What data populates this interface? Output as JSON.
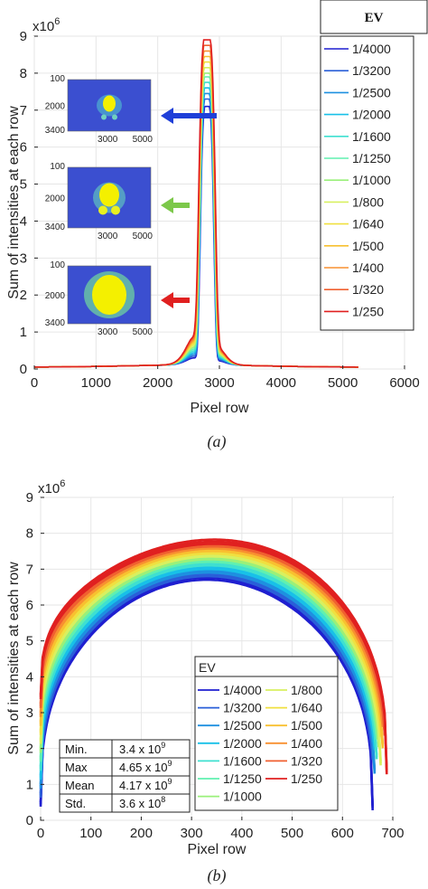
{
  "chart_data": [
    {
      "type": "line",
      "caption": "(a)",
      "xlabel": "Pixel row",
      "ylabel": "Sum of intensities at each row",
      "y_exponent": "x10^6",
      "xlim": [
        0,
        6000
      ],
      "ylim": [
        0,
        9
      ],
      "xticks": [
        "0",
        "1000",
        "2000",
        "3000",
        "4000",
        "5000",
        "6000"
      ],
      "yticks": [
        "0",
        "1",
        "2",
        "3",
        "4",
        "5",
        "6",
        "7",
        "8",
        "9"
      ],
      "grid": true,
      "legend": {
        "title": "EV",
        "placement": "right-outside"
      },
      "series": [
        {
          "name": "1/4000",
          "color": "#1f1fd0",
          "peak": 7.1
        },
        {
          "name": "1/3200",
          "color": "#2a5fd8",
          "peak": 7.3
        },
        {
          "name": "1/2500",
          "color": "#1e90e0",
          "peak": 7.45
        },
        {
          "name": "1/2000",
          "color": "#18c0e8",
          "peak": 7.6
        },
        {
          "name": "1/1600",
          "color": "#3fe0d0",
          "peak": 7.75
        },
        {
          "name": "1/1250",
          "color": "#60f0b0",
          "peak": 7.9
        },
        {
          "name": "1/1000",
          "color": "#9af07a",
          "peak": 8.0
        },
        {
          "name": "1/800",
          "color": "#d8f060",
          "peak": 8.15
        },
        {
          "name": "1/640",
          "color": "#f0e040",
          "peak": 8.3
        },
        {
          "name": "1/500",
          "color": "#f8c030",
          "peak": 8.45
        },
        {
          "name": "1/400",
          "color": "#f89030",
          "peak": 8.6
        },
        {
          "name": "1/320",
          "color": "#f06030",
          "peak": 8.75
        },
        {
          "name": "1/250",
          "color": "#e02020",
          "peak": 8.9
        }
      ],
      "peak_x": 2800,
      "insets": [
        {
          "yticks": [
            "100",
            "2000",
            "3400"
          ],
          "xticks": [
            "3000",
            "5000"
          ],
          "arrow_color": "#1f3fd8"
        },
        {
          "yticks": [
            "100",
            "2000",
            "3400"
          ],
          "xticks": [
            "3000",
            "5000"
          ],
          "arrow_color": "#7cc84a"
        },
        {
          "yticks": [
            "100",
            "2000",
            "3400"
          ],
          "xticks": [
            "3000",
            "5000"
          ],
          "arrow_color": "#e02020"
        }
      ]
    },
    {
      "type": "line",
      "caption": "(b)",
      "xlabel": "Pixel row",
      "ylabel": "Sum of intensities at each row",
      "y_exponent": "x10^6",
      "xlim": [
        0,
        700
      ],
      "ylim": [
        0,
        9
      ],
      "xticks": [
        "0",
        "100",
        "200",
        "300",
        "400",
        "500",
        "600",
        "700"
      ],
      "yticks": [
        "0",
        "1",
        "2",
        "3",
        "4",
        "5",
        "6",
        "7",
        "8",
        "9"
      ],
      "grid": true,
      "legend": {
        "title": "EV",
        "placement": "bottom-right"
      },
      "series": [
        {
          "name": "1/4000",
          "color": "#1f1fd0",
          "top": 6.85
        },
        {
          "name": "1/3200",
          "color": "#2a5fd8",
          "top": 6.95
        },
        {
          "name": "1/2500",
          "color": "#1e90e0",
          "top": 7.05
        },
        {
          "name": "1/2000",
          "color": "#18c0e8",
          "top": 7.15
        },
        {
          "name": "1/1600",
          "color": "#3fe0d0",
          "top": 7.25
        },
        {
          "name": "1/1250",
          "color": "#60f0b0",
          "top": 7.35
        },
        {
          "name": "1/1000",
          "color": "#9af07a",
          "top": 7.42
        },
        {
          "name": "1/800",
          "color": "#d8f060",
          "top": 7.5
        },
        {
          "name": "1/640",
          "color": "#f0e040",
          "top": 7.58
        },
        {
          "name": "1/500",
          "color": "#f8c030",
          "top": 7.65
        },
        {
          "name": "1/400",
          "color": "#f89030",
          "top": 7.72
        },
        {
          "name": "1/320",
          "color": "#f06030",
          "top": 7.78
        },
        {
          "name": "1/250",
          "color": "#e02020",
          "top": 7.85
        }
      ],
      "stats_table": [
        {
          "label": "Min.",
          "value": "3.4 x 10",
          "exp": "9"
        },
        {
          "label": "Max",
          "value": "4.65 x 10",
          "exp": "9"
        },
        {
          "label": "Mean",
          "value": "4.17 x 10",
          "exp": "9"
        },
        {
          "label": "Std.",
          "value": "3.6 x 10",
          "exp": "8"
        }
      ]
    }
  ]
}
